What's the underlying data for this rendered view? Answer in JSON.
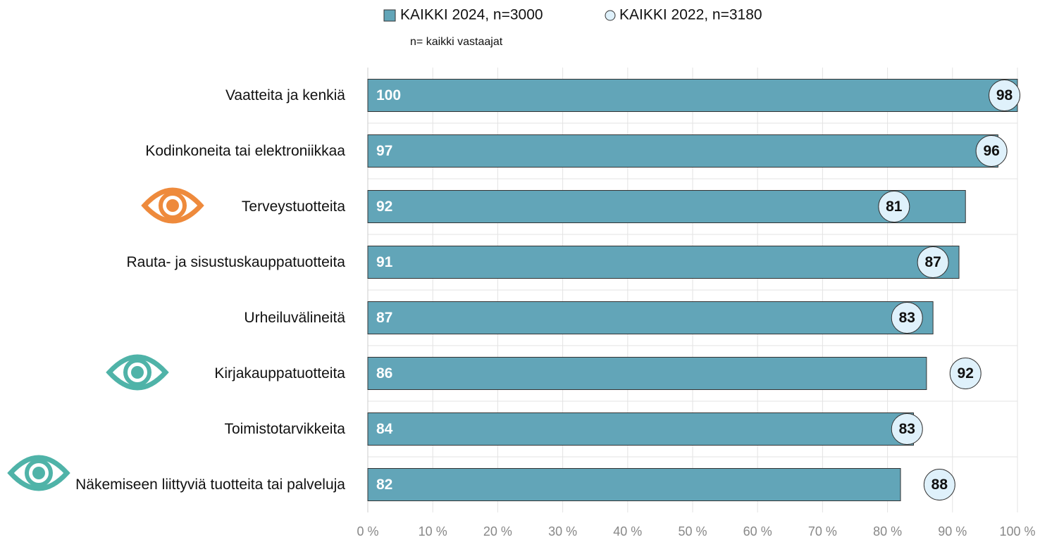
{
  "chart_data": {
    "type": "bar",
    "orientation": "horizontal",
    "subtitle": "n= kaikki vastaajat",
    "categories": [
      "Vaatteita ja kenkiä",
      "Kodinkoneita tai elektroniikkaa",
      "Terveystuotteita",
      "Rauta- ja sisustuskauppatuotteita",
      "Urheiluvälineitä",
      "Kirjakauppatuotteita",
      "Toimistotarvikkeita",
      "Näkemiseen liittyviä tuotteita tai palveluja"
    ],
    "series": [
      {
        "name": "KAIKKI 2024, n=3000",
        "color": "#62a5b8",
        "marker": "bar",
        "values": [
          100,
          97,
          92,
          91,
          87,
          86,
          84,
          82
        ]
      },
      {
        "name": "KAIKKI 2022, n=3180",
        "color": "#dff1fb",
        "marker": "circle",
        "values": [
          98,
          96,
          81,
          87,
          83,
          92,
          83,
          88
        ]
      }
    ],
    "xlim": [
      0,
      100
    ],
    "xticks": [
      {
        "value": 0,
        "label": "0 %"
      },
      {
        "value": 10,
        "label": "10 %"
      },
      {
        "value": 20,
        "label": "20 %"
      },
      {
        "value": 30,
        "label": "30 %"
      },
      {
        "value": 40,
        "label": "40 %"
      },
      {
        "value": 50,
        "label": "50 %"
      },
      {
        "value": 60,
        "label": "60 %"
      },
      {
        "value": 70,
        "label": "70 %"
      },
      {
        "value": 80,
        "label": "80 %"
      },
      {
        "value": 90,
        "label": "90 %"
      },
      {
        "value": 100,
        "label": "100 %"
      }
    ],
    "grid": true
  }
}
